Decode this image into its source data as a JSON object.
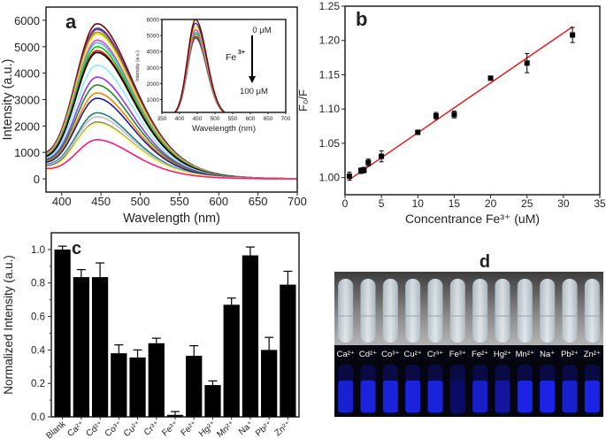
{
  "chart_data": [
    {
      "panel_label": "a",
      "type": "line",
      "xlabel": "Wavelength (nm)",
      "ylabel": "Intensity (a.u.)",
      "xlim": [
        380,
        700
      ],
      "ylim": [
        -500,
        6500
      ],
      "xticks": [
        400,
        450,
        500,
        550,
        600,
        650,
        700
      ],
      "yticks": [
        0,
        1000,
        2000,
        3000,
        4000,
        5000,
        6000
      ],
      "grid": false,
      "peak_wavelength": 445,
      "series": [
        {
          "color": "#8b0000",
          "peak": 5870,
          "start": 700
        },
        {
          "color": "#3b2f8f",
          "peak": 5700,
          "start": 680
        },
        {
          "color": "#7b3f9f",
          "peak": 5650,
          "start": 680
        },
        {
          "color": "#9a9a00",
          "peak": 5550,
          "start": 660
        },
        {
          "color": "#e6e600",
          "peak": 5480,
          "start": 650
        },
        {
          "color": "#ff33cc",
          "peak": 5250,
          "start": 640
        },
        {
          "color": "#33cccc",
          "peak": 5150,
          "start": 630
        },
        {
          "color": "#00cc00",
          "peak": 5000,
          "start": 620
        },
        {
          "color": "#ee0000",
          "peak": 4850,
          "start": 610
        },
        {
          "color": "#000000",
          "peak": 4780,
          "start": 600
        },
        {
          "color": "#88eeff",
          "peak": 4300,
          "start": 580
        },
        {
          "color": "#9933ff",
          "peak": 3850,
          "start": 560
        },
        {
          "color": "#228b22",
          "peak": 3550,
          "start": 540
        },
        {
          "color": "#ff8000",
          "peak": 3250,
          "start": 520
        },
        {
          "color": "#1a1aa0",
          "peak": 3050,
          "start": 500
        },
        {
          "color": "#1f8080",
          "peak": 2500,
          "start": 460
        },
        {
          "color": "#c0c0c0",
          "peak": 2350,
          "start": 440
        },
        {
          "color": "#808080",
          "peak": 2150,
          "start": 420
        },
        {
          "color": "#ffff66",
          "peak": 2100,
          "start": 180
        },
        {
          "color": "#ff1a75",
          "peak": 1480,
          "start": 350
        }
      ],
      "inset": {
        "type": "line",
        "xlabel": "Wavelength (nm)",
        "ylabel": "Intensity (a.u.)",
        "xlim": [
          350,
          700
        ],
        "ylim": [
          200,
          6000
        ],
        "xticks": [
          350,
          400,
          450,
          500,
          550,
          600,
          650,
          700
        ],
        "yticks": [
          1000,
          2000,
          3000,
          4000,
          5000,
          6000
        ],
        "annotation_top": "0 μM",
        "annotation_mid": "Fe",
        "annotation_mid_sup": "3+",
        "annotation_bottom": "100 μM",
        "series": [
          {
            "color": "#1a1aa0",
            "peak": 4750
          },
          {
            "color": "#808080",
            "peak": 4800
          },
          {
            "color": "#ee0000",
            "peak": 4850
          },
          {
            "color": "#00cc00",
            "peak": 5000
          },
          {
            "color": "#33cccc",
            "peak": 5100
          },
          {
            "color": "#ff33cc",
            "peak": 5250
          },
          {
            "color": "#e6e600",
            "peak": 5450
          },
          {
            "color": "#3b2f8f",
            "peak": 5650
          },
          {
            "color": "#8b0000",
            "peak": 5870
          }
        ]
      }
    },
    {
      "panel_label": "b",
      "type": "scatter",
      "xlabel": "Concentrance Fe³⁺ (uM)",
      "ylabel": "F₀/F",
      "xlim": [
        0,
        35
      ],
      "ylim": [
        0.975,
        1.25
      ],
      "xticks": [
        0,
        5,
        10,
        15,
        20,
        25,
        30,
        35
      ],
      "yticks": [
        "1.00",
        "1.05",
        "1.10",
        "1.15",
        "1.20",
        "1.25"
      ],
      "grid": false,
      "points": [
        {
          "x": 0.6,
          "y": 1.002,
          "err": 0.006
        },
        {
          "x": 2.2,
          "y": 1.01,
          "err": 0.004
        },
        {
          "x": 2.6,
          "y": 1.011,
          "err": 0.004
        },
        {
          "x": 3.2,
          "y": 1.022,
          "err": 0.005
        },
        {
          "x": 5.0,
          "y": 1.031,
          "err": 0.008
        },
        {
          "x": 10.0,
          "y": 1.066,
          "err": 0.003
        },
        {
          "x": 12.5,
          "y": 1.09,
          "err": 0.005
        },
        {
          "x": 15.0,
          "y": 1.092,
          "err": 0.005
        },
        {
          "x": 20.0,
          "y": 1.145,
          "err": 0.003
        },
        {
          "x": 25.0,
          "y": 1.167,
          "err": 0.014
        },
        {
          "x": 31.25,
          "y": 1.208,
          "err": 0.011
        }
      ],
      "fit_line": {
        "color": "#ee1111",
        "x": [
          0.6,
          31.25
        ],
        "y": [
          0.997,
          1.22
        ]
      }
    },
    {
      "panel_label": "c",
      "type": "bar",
      "xlabel": "",
      "ylabel": "Normalized Intensity (a.u.)",
      "ylim": [
        0,
        1.1
      ],
      "yticks": [
        "0.0",
        "0.2",
        "0.4",
        "0.6",
        "0.8",
        "1.0"
      ],
      "grid": false,
      "categories": [
        "Blank",
        "Ca²⁺",
        "Cd²⁺",
        "Co³⁺",
        "Cu²⁺",
        "Cr³⁺",
        "Fe³⁺",
        "Fe²⁺",
        "Hg²⁺",
        "Mn²⁺",
        "Na⁺",
        "Pb²⁺",
        "Zn²⁺"
      ],
      "values": [
        1.0,
        0.835,
        0.835,
        0.38,
        0.355,
        0.44,
        0.012,
        0.365,
        0.19,
        0.67,
        0.965,
        0.4,
        0.79
      ],
      "errors": [
        0.02,
        0.045,
        0.085,
        0.05,
        0.045,
        0.03,
        0.02,
        0.06,
        0.025,
        0.04,
        0.05,
        0.075,
        0.08
      ],
      "bar_color": "#000000"
    }
  ],
  "photo": {
    "panel_label": "d",
    "tube_labels": [
      "Ca²⁺",
      "Cd²⁺",
      "Co³⁺",
      "Cu²⁺",
      "Cr³⁺",
      "Fe³⁺",
      "Fe²⁺",
      "Hg²⁺",
      "Mn²⁺",
      "Na⁺",
      "Pb²⁺",
      "Zn²⁺"
    ],
    "uv_brightness": [
      0.8,
      0.85,
      0.85,
      0.85,
      0.85,
      0.3,
      0.75,
      0.55,
      0.9,
      0.9,
      0.8,
      0.9
    ]
  }
}
